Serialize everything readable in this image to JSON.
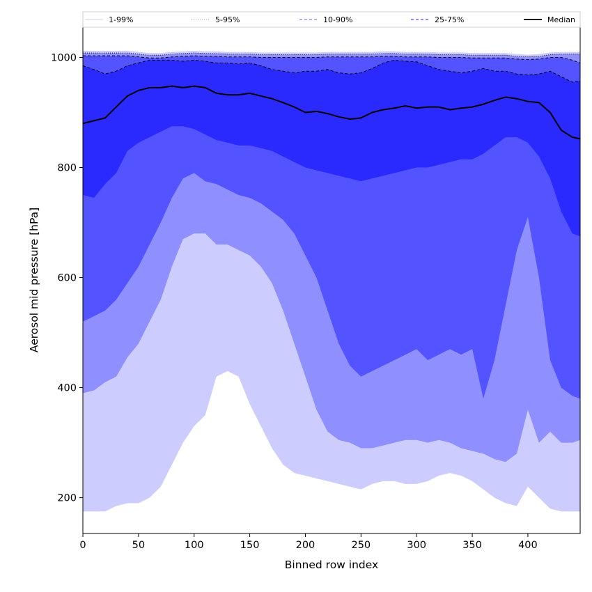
{
  "chart_data": {
    "type": "area",
    "xlabel": "Binned row index",
    "ylabel": "Aerosol mid pressure [hPa]",
    "xlim": [
      0,
      447
    ],
    "ylim": [
      135,
      1055
    ],
    "xticks": [
      0,
      50,
      100,
      150,
      200,
      250,
      300,
      350,
      400
    ],
    "yticks": [
      200,
      400,
      600,
      800,
      1000
    ],
    "legend_position": "top, outside plot (single row)",
    "legend": [
      {
        "label": "1-99%",
        "style": "thin-solid",
        "color": "#ccccff"
      },
      {
        "label": "5-95%",
        "style": "thin-dotted",
        "color": "#8f8fff"
      },
      {
        "label": "10-90%",
        "style": "dashed",
        "color": "#8080ff"
      },
      {
        "label": "25-75%",
        "style": "dashed",
        "color": "#4d4dff"
      },
      {
        "label": "Median",
        "style": "solid-thick",
        "color": "#000000"
      }
    ],
    "x": [
      0,
      10,
      20,
      30,
      40,
      50,
      60,
      70,
      80,
      90,
      100,
      110,
      120,
      130,
      140,
      150,
      160,
      170,
      180,
      190,
      200,
      210,
      220,
      230,
      240,
      250,
      260,
      270,
      280,
      290,
      300,
      310,
      320,
      330,
      340,
      350,
      360,
      370,
      380,
      390,
      400,
      410,
      420,
      430,
      440,
      447
    ],
    "series": [
      {
        "name": "1-99%",
        "color": "#ccccff",
        "lower": [
          175,
          175,
          175,
          185,
          190,
          190,
          200,
          220,
          260,
          300,
          330,
          350,
          420,
          430,
          420,
          370,
          330,
          290,
          260,
          245,
          240,
          235,
          230,
          225,
          220,
          215,
          225,
          230,
          230,
          225,
          225,
          230,
          240,
          245,
          240,
          230,
          215,
          200,
          190,
          185,
          220,
          200,
          180,
          175,
          175,
          175
        ],
        "upper": [
          1012,
          1012,
          1012,
          1012,
          1012,
          1010,
          1008,
          1008,
          1010,
          1011,
          1012,
          1011,
          1011,
          1010,
          1010,
          1010,
          1009,
          1009,
          1009,
          1009,
          1009,
          1009,
          1010,
          1010,
          1010,
          1010,
          1010,
          1011,
          1011,
          1010,
          1010,
          1010,
          1009,
          1009,
          1009,
          1008,
          1008,
          1008,
          1008,
          1006,
          1005,
          1006,
          1009,
          1010,
          1010,
          1010
        ]
      },
      {
        "name": "5-95%",
        "color": "#8f8fff",
        "lower": [
          390,
          395,
          410,
          420,
          455,
          480,
          520,
          560,
          620,
          670,
          680,
          680,
          660,
          660,
          650,
          640,
          620,
          590,
          540,
          480,
          420,
          360,
          320,
          305,
          300,
          290,
          290,
          295,
          300,
          305,
          305,
          300,
          305,
          300,
          290,
          285,
          280,
          270,
          265,
          280,
          360,
          300,
          320,
          300,
          300,
          305
        ],
        "upper": [
          1008,
          1008,
          1008,
          1008,
          1008,
          1006,
          1004,
          1004,
          1006,
          1007,
          1008,
          1007,
          1007,
          1006,
          1006,
          1006,
          1005,
          1005,
          1005,
          1005,
          1005,
          1005,
          1006,
          1006,
          1006,
          1006,
          1006,
          1007,
          1007,
          1006,
          1006,
          1006,
          1005,
          1005,
          1005,
          1004,
          1004,
          1004,
          1004,
          1002,
          1001,
          1002,
          1005,
          1006,
          1006,
          1006
        ]
      },
      {
        "name": "10-90%",
        "color": "#5353ff",
        "lower": [
          520,
          530,
          540,
          560,
          590,
          620,
          660,
          700,
          745,
          780,
          790,
          775,
          770,
          760,
          750,
          745,
          735,
          720,
          705,
          680,
          640,
          600,
          540,
          480,
          440,
          420,
          430,
          440,
          450,
          460,
          470,
          450,
          460,
          470,
          460,
          470,
          380,
          450,
          550,
          650,
          710,
          600,
          450,
          400,
          385,
          380
        ],
        "upper": [
          1003,
          1003,
          1003,
          1003,
          1003,
          1001,
          999,
          999,
          1001,
          1002,
          1003,
          1002,
          1002,
          1001,
          1001,
          1001,
          1000,
          1000,
          1000,
          1000,
          1000,
          1000,
          1001,
          1001,
          1001,
          1001,
          1001,
          1002,
          1002,
          1001,
          1001,
          1001,
          1000,
          1000,
          1000,
          999,
          999,
          999,
          999,
          997,
          996,
          997,
          1000,
          1000,
          995,
          990
        ]
      },
      {
        "name": "25-75%",
        "color": "#2a2aff",
        "lower": [
          750,
          745,
          770,
          790,
          830,
          845,
          855,
          865,
          875,
          875,
          870,
          860,
          850,
          845,
          840,
          840,
          835,
          830,
          820,
          810,
          800,
          795,
          790,
          785,
          780,
          775,
          780,
          785,
          790,
          795,
          800,
          800,
          805,
          810,
          815,
          815,
          825,
          840,
          855,
          855,
          845,
          820,
          780,
          720,
          680,
          675
        ],
        "upper": [
          985,
          978,
          970,
          975,
          985,
          990,
          995,
          995,
          995,
          993,
          995,
          993,
          990,
          990,
          988,
          990,
          985,
          978,
          975,
          972,
          975,
          975,
          978,
          972,
          970,
          972,
          980,
          990,
          995,
          993,
          992,
          985,
          978,
          975,
          972,
          975,
          980,
          975,
          975,
          970,
          968,
          970,
          975,
          965,
          955,
          958
        ]
      },
      {
        "name": "Median",
        "color": "#000000",
        "values": [
          880,
          885,
          890,
          910,
          930,
          940,
          945,
          945,
          948,
          945,
          948,
          945,
          935,
          932,
          932,
          935,
          930,
          925,
          918,
          910,
          900,
          902,
          898,
          892,
          888,
          890,
          900,
          905,
          908,
          912,
          908,
          910,
          910,
          905,
          908,
          910,
          915,
          922,
          928,
          925,
          920,
          918,
          900,
          868,
          855,
          852
        ]
      }
    ]
  }
}
